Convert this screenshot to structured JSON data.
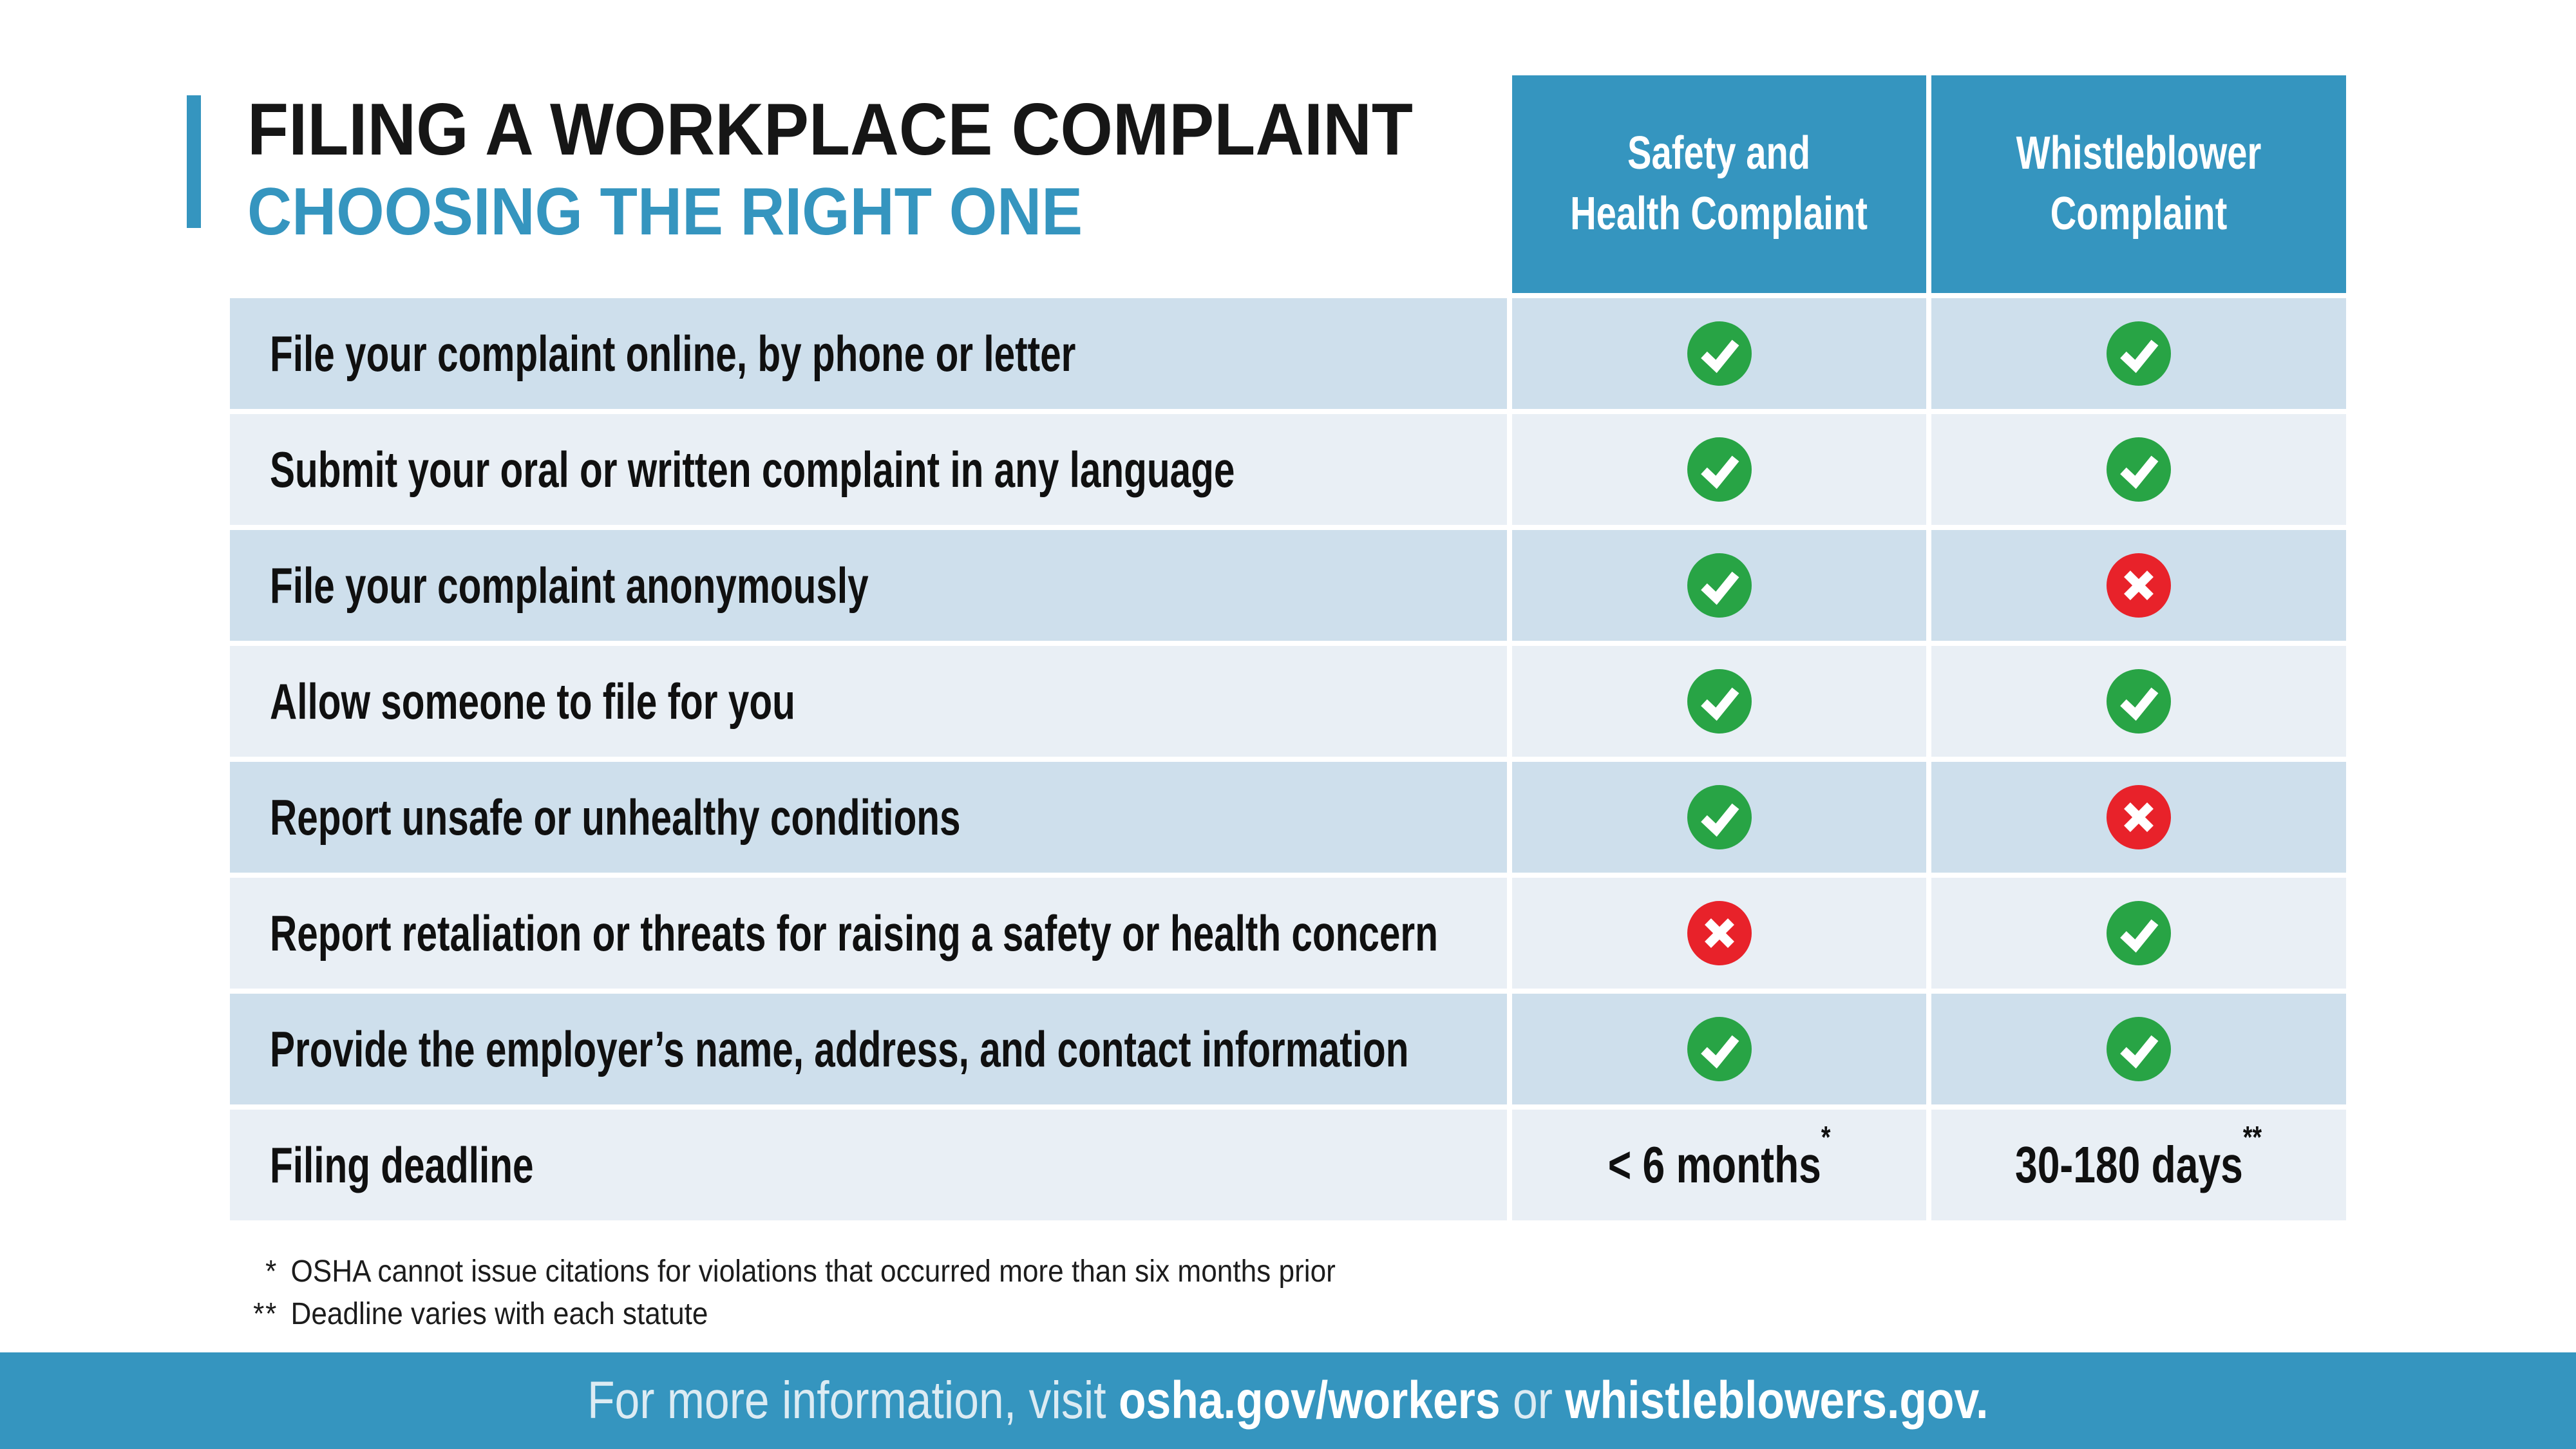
{
  "colors": {
    "teal": "#3595bf",
    "row_dark": "#cedfec",
    "row_light": "#e9eff5",
    "check_green": "#28a445",
    "cross_red": "#e8222a",
    "title_black": "#161616"
  },
  "header": {
    "title": "FILING A WORKPLACE COMPLAINT",
    "subtitle": "CHOOSING THE RIGHT ONE",
    "columns": [
      {
        "line1": "Safety and",
        "line2": "Health Complaint"
      },
      {
        "line1": "Whistleblower",
        "line2": "Complaint"
      }
    ]
  },
  "table": {
    "rows": [
      {
        "label": "File your complaint online, by phone or letter",
        "safety": {
          "type": "check"
        },
        "whistleblower": {
          "type": "check"
        }
      },
      {
        "label": "Submit your oral or written complaint in any language",
        "safety": {
          "type": "check"
        },
        "whistleblower": {
          "type": "check"
        }
      },
      {
        "label": "File your complaint anonymously",
        "safety": {
          "type": "check"
        },
        "whistleblower": {
          "type": "cross"
        }
      },
      {
        "label": "Allow someone to file for you",
        "safety": {
          "type": "check"
        },
        "whistleblower": {
          "type": "check"
        }
      },
      {
        "label": "Report unsafe or unhealthy conditions",
        "safety": {
          "type": "check"
        },
        "whistleblower": {
          "type": "cross"
        }
      },
      {
        "label": "Report retaliation or threats for raising a safety or health concern",
        "safety": {
          "type": "cross"
        },
        "whistleblower": {
          "type": "check"
        }
      },
      {
        "label": "Provide the employer’s name, address, and contact information",
        "safety": {
          "type": "check"
        },
        "whistleblower": {
          "type": "check"
        }
      },
      {
        "label": "Filing deadline",
        "safety": {
          "type": "text",
          "text": "< 6 months",
          "sup": "*"
        },
        "whistleblower": {
          "type": "text",
          "text": "30-180 days",
          "sup": "**"
        }
      }
    ]
  },
  "footnotes": [
    {
      "marker": "*",
      "text": "OSHA cannot issue citations for violations that occurred more than six months prior"
    },
    {
      "marker": "**",
      "text": "Deadline varies with each statute"
    }
  ],
  "footer": {
    "prefix": "For more information, visit ",
    "link1": "osha.gov/workers",
    "middle": " or ",
    "link2": "whistleblowers.gov."
  }
}
